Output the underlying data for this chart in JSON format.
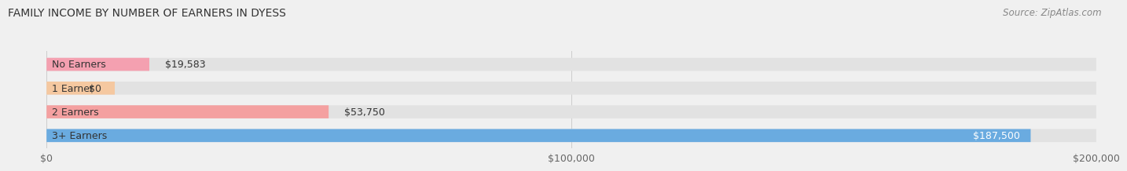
{
  "title": "FAMILY INCOME BY NUMBER OF EARNERS IN DYESS",
  "source": "Source: ZipAtlas.com",
  "categories": [
    "No Earners",
    "1 Earner",
    "2 Earners",
    "3+ Earners"
  ],
  "values": [
    19583,
    0,
    53750,
    187500
  ],
  "labels": [
    "$19,583",
    "$0",
    "$53,750",
    "$187,500"
  ],
  "bar_colors": [
    "#f4a0b0",
    "#f5c8a0",
    "#f4a0a0",
    "#6aabe0"
  ],
  "label_colors": [
    "#555555",
    "#555555",
    "#555555",
    "#ffffff"
  ],
  "xlim": [
    0,
    200000
  ],
  "xticks": [
    0,
    100000,
    200000
  ],
  "xtick_labels": [
    "$0",
    "$100,000",
    "$200,000"
  ],
  "background_color": "#f0f0f0",
  "bar_bg_color": "#e2e2e2",
  "title_fontsize": 10,
  "source_fontsize": 8.5,
  "tick_fontsize": 9,
  "bar_label_fontsize": 9,
  "category_fontsize": 9,
  "label_inside_threshold": 150000
}
